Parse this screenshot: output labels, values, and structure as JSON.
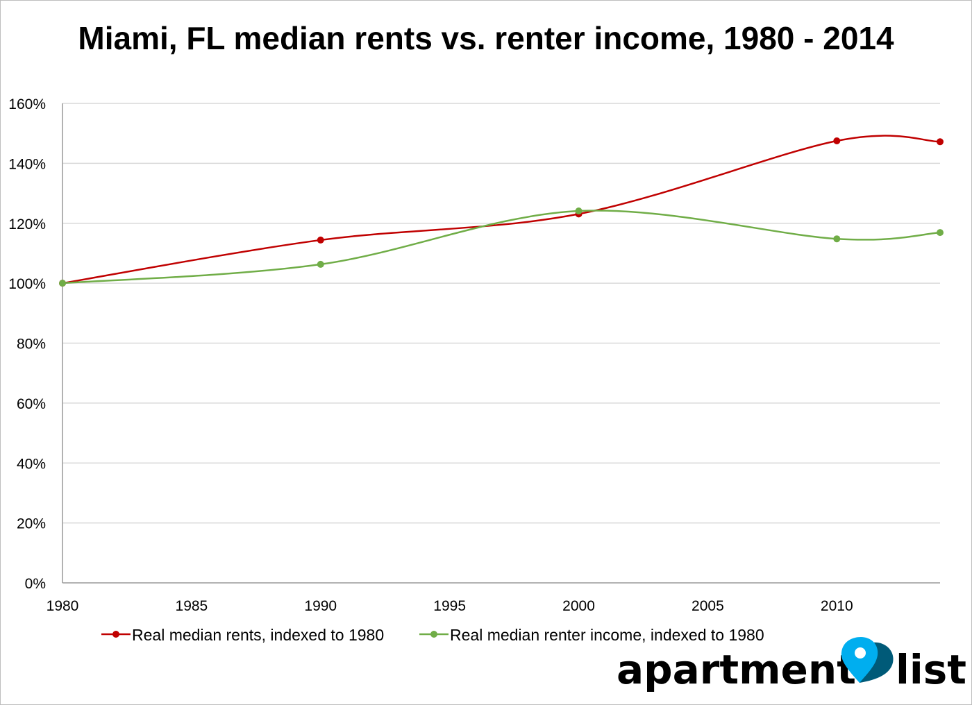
{
  "chart_data": {
    "type": "line",
    "title": "Miami, FL median rents vs. renter income, 1980 - 2014",
    "xlabel": "",
    "ylabel": "",
    "x": [
      1980,
      1990,
      2000,
      2010,
      2014
    ],
    "xlim": [
      1980,
      2014
    ],
    "ylim": [
      0,
      160
    ],
    "x_ticks": [
      "1980",
      "1985",
      "1990",
      "1995",
      "2000",
      "2005",
      "2010"
    ],
    "y_ticks": [
      "0%",
      "20%",
      "40%",
      "60%",
      "80%",
      "100%",
      "120%",
      "140%",
      "160%"
    ],
    "grid": "horizontal",
    "smoothed": true,
    "legend_position": "bottom",
    "series": [
      {
        "name": "Real median rents, indexed to 1980",
        "color": "#c00000",
        "values": [
          100,
          114.4,
          123.1,
          147.5,
          147.2
        ]
      },
      {
        "name": "Real median renter income, indexed to 1980",
        "color": "#70ad47",
        "values": [
          100,
          106.3,
          124.1,
          114.8,
          116.9
        ]
      }
    ]
  },
  "logo": {
    "text_left": "apartment",
    "text_right": "list",
    "pin_light": "#00aeef",
    "pin_dark": "#005a78"
  }
}
